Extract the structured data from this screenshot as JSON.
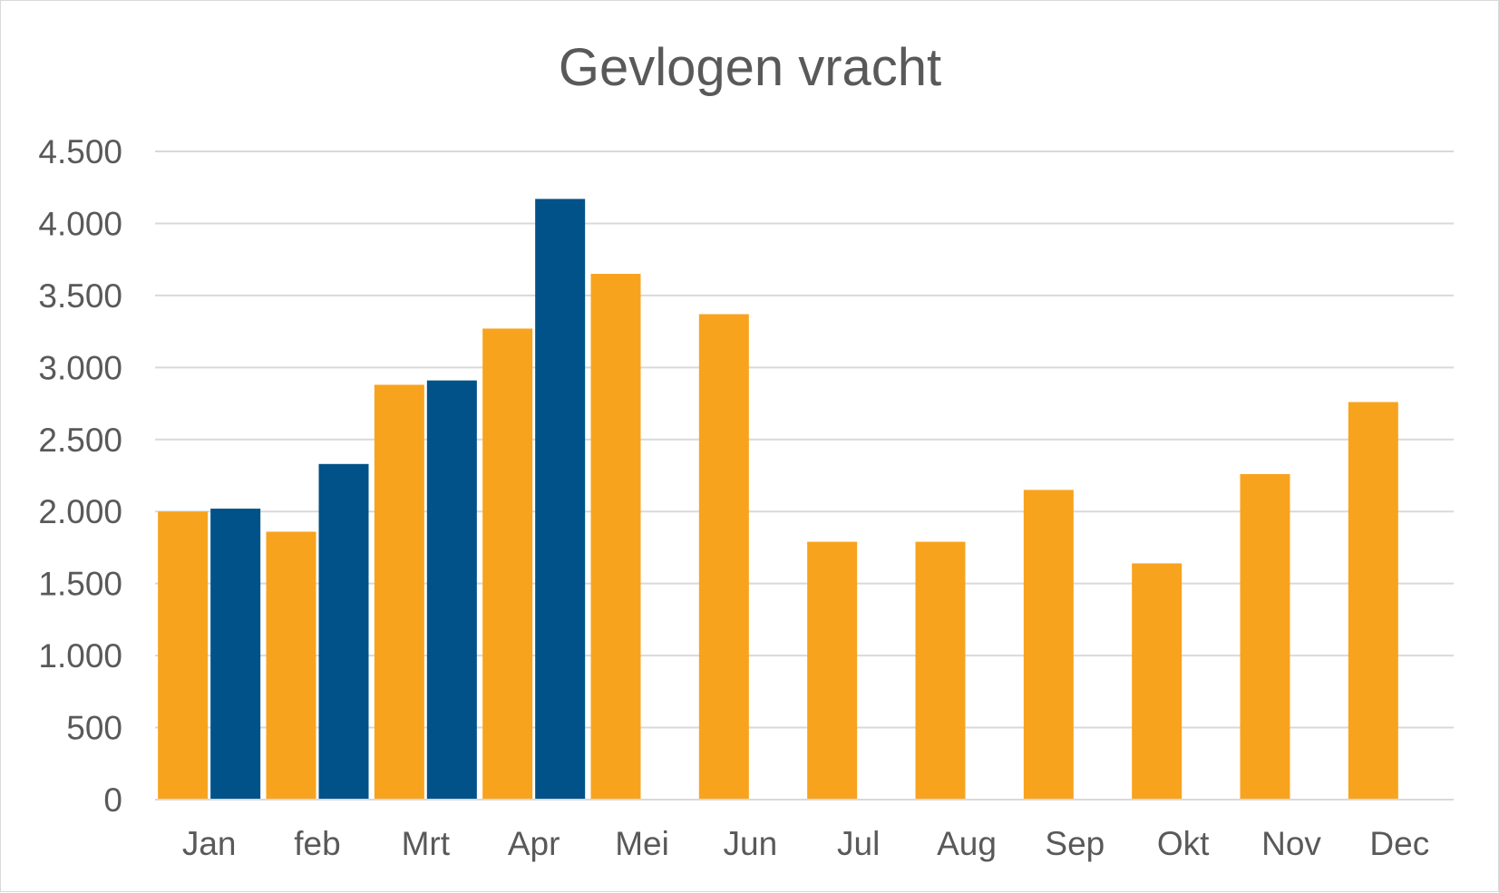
{
  "chart_data": {
    "type": "bar",
    "title": "Gevlogen vracht",
    "xlabel": "",
    "ylabel": "",
    "ylim": [
      0,
      4500
    ],
    "yticks": [
      0,
      500,
      1000,
      1500,
      2000,
      2500,
      3000,
      3500,
      4000,
      4500
    ],
    "ytick_labels": [
      "0",
      "500",
      "1.000",
      "1.500",
      "2.000",
      "2.500",
      "3.000",
      "3.500",
      "4.000",
      "4.500"
    ],
    "grid": true,
    "legend": "none",
    "categories": [
      "Jan",
      "feb",
      "Mrt",
      "Apr",
      "Mei",
      "Jun",
      "Jul",
      "Aug",
      "Sep",
      "Okt",
      "Nov",
      "Dec"
    ],
    "series": [
      {
        "color": "#F8A31E",
        "values": [
          2000,
          1860,
          2880,
          3270,
          3650,
          3370,
          1790,
          1790,
          2150,
          1640,
          2260,
          2760
        ]
      },
      {
        "color": "#005288",
        "values": [
          2020,
          2330,
          2910,
          4170,
          null,
          null,
          null,
          null,
          null,
          null,
          null,
          null
        ]
      }
    ]
  }
}
